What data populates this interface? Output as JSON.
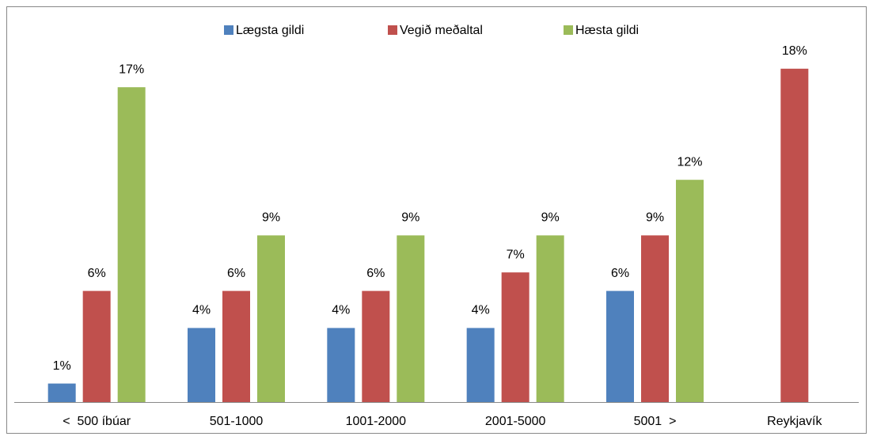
{
  "chart_data": {
    "type": "bar",
    "categories": [
      "<  500 íbúar",
      "501-1000",
      "1001-2000",
      "2001-5000",
      "5001  >",
      "Reykjavík"
    ],
    "series": [
      {
        "name": "Lægsta gildi",
        "color": "#4f81bd",
        "values": [
          1,
          4,
          4,
          4,
          6,
          null
        ],
        "value_labels": [
          "1%",
          "4%",
          "4%",
          "4%",
          "6%",
          null
        ]
      },
      {
        "name": "Vegið meðaltal",
        "color": "#c0504d",
        "values": [
          6,
          6,
          6,
          7,
          9,
          18
        ],
        "value_labels": [
          "6%",
          "6%",
          "6%",
          "7%",
          "9%",
          "18%"
        ]
      },
      {
        "name": "Hæsta gildi",
        "color": "#9bbb59",
        "values": [
          17,
          9,
          9,
          9,
          12,
          null
        ],
        "value_labels": [
          "17%",
          "9%",
          "9%",
          "9%",
          "12%",
          null
        ]
      }
    ],
    "ylim": [
      0,
      20
    ],
    "legend": "top"
  }
}
